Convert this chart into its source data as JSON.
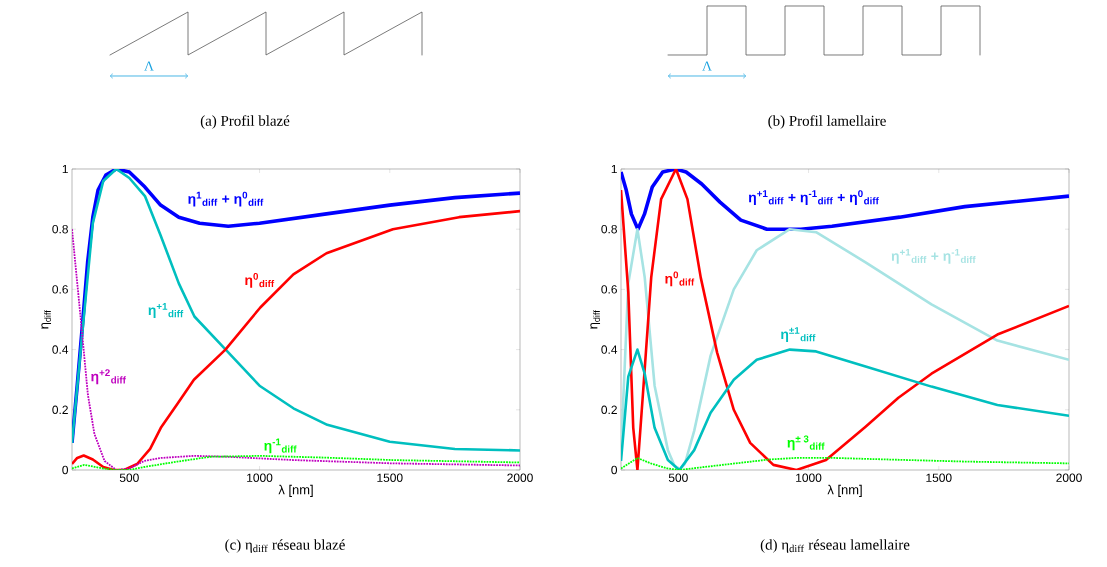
{
  "chart_data": [
    {
      "type": "other",
      "annotations": [
        "Λ",
        "(a) Profil blazé"
      ]
    },
    {
      "type": "other",
      "annotations": [
        "Λ",
        "(b) Profil lamellaire"
      ]
    },
    {
      "type": "line",
      "xlabel": "λ [nm]",
      "ylabel": "η$_{diff}$",
      "xlim": [
        280,
        2000
      ],
      "ylim": [
        0,
        1
      ],
      "xticks": [
        500,
        1000,
        1500,
        2000
      ],
      "yticks": [
        0,
        0.2,
        0.4,
        0.6,
        0.8,
        1
      ],
      "annotations": [
        "(c) η$_{diff}$ réseau blazé"
      ],
      "series": [
        {
          "name": "η$^{1}$$_{diff}$ + η$^{0}$$_{diff}$",
          "color": "#0000ff",
          "x": [
            280,
            300,
            320,
            340,
            360,
            380,
            410,
            450,
            500,
            560,
            620,
            690,
            770,
            880,
            1000,
            1250,
            1500,
            1750,
            2000
          ],
          "values": [
            0.09,
            0.28,
            0.48,
            0.69,
            0.84,
            0.93,
            0.98,
            1.0,
            0.99,
            0.94,
            0.88,
            0.84,
            0.82,
            0.81,
            0.82,
            0.85,
            0.88,
            0.905,
            0.92
          ]
        },
        {
          "name": "η$^{+1}$$_{diff}$",
          "color": "#00bfbf",
          "x": [
            280,
            320,
            360,
            400,
            450,
            500,
            560,
            620,
            690,
            750,
            870,
            1000,
            1130,
            1260,
            1500,
            1750,
            2000
          ],
          "values": [
            0.09,
            0.46,
            0.82,
            0.96,
            1.0,
            0.97,
            0.91,
            0.78,
            0.62,
            0.51,
            0.4,
            0.28,
            0.205,
            0.15,
            0.094,
            0.07,
            0.065
          ]
        },
        {
          "name": "η$^{0}$$_{diff}$",
          "color": "#ff0000",
          "x": [
            280,
            300,
            325,
            360,
            400,
            440,
            480,
            530,
            580,
            621,
            685,
            748,
            869,
            1003,
            1130,
            1257,
            1512,
            1766,
            2000
          ],
          "values": [
            0.02,
            0.04,
            0.048,
            0.035,
            0.01,
            0,
            0,
            0.02,
            0.07,
            0.14,
            0.22,
            0.3,
            0.4,
            0.54,
            0.65,
            0.72,
            0.8,
            0.84,
            0.86
          ]
        },
        {
          "name": "η$^{+2}$$_{diff}$",
          "color": "#bf00bf",
          "line_style": "dotted",
          "x": [
            280,
            316,
            341,
            366,
            405,
            450,
            500,
            557,
            621,
            748,
            875,
            1130,
            1512,
            2000
          ],
          "values": [
            0.8,
            0.48,
            0.25,
            0.12,
            0.03,
            0,
            0.005,
            0.03,
            0.04,
            0.047,
            0.044,
            0.033,
            0.022,
            0.015
          ]
        },
        {
          "name": "η$^{-1}$$_{diff}$",
          "color": "#00ff00",
          "line_style": "dotted",
          "x": [
            280,
            327,
            400,
            450,
            500,
            557,
            685,
            812,
            1003,
            1257,
            1512,
            2000
          ],
          "values": [
            0.005,
            0.017,
            0.005,
            0,
            0,
            0.01,
            0.028,
            0.044,
            0.047,
            0.041,
            0.033,
            0.025
          ]
        }
      ]
    },
    {
      "type": "line",
      "xlabel": "λ [nm]",
      "ylabel": "η$_{diff}$",
      "xlim": [
        280,
        2000
      ],
      "ylim": [
        0,
        1
      ],
      "xticks": [
        500,
        1000,
        1500,
        2000
      ],
      "yticks": [
        0,
        0.2,
        0.4,
        0.6,
        0.8,
        1
      ],
      "annotations": [
        "(d) η$_{diff}$ réseau lamellaire"
      ],
      "series": [
        {
          "name": "η$^{+1}$$_{diff}$ + η$^{-1}$$_{diff}$ + η$^{0}$$_{diff}$",
          "color": "#0000ff",
          "x": [
            280,
            300,
            320,
            345,
            370,
            400,
            440,
            490,
            530,
            590,
            660,
            740,
            840,
            970,
            1090,
            1350,
            1600,
            2000
          ],
          "values": [
            0.99,
            0.93,
            0.85,
            0.8,
            0.85,
            0.94,
            0.99,
            1.0,
            0.99,
            0.95,
            0.89,
            0.83,
            0.8,
            0.8,
            0.81,
            0.84,
            0.875,
            0.91
          ]
        },
        {
          "name": "η$^{+1}$$_{diff}$ + η$^{-1}$$_{diff}$",
          "color": "#a6e3e3",
          "x": [
            280,
            308,
            343,
            371,
            409,
            460,
            485,
            504,
            525,
            561,
            624,
            713,
            801,
            928,
            1029,
            1219,
            1472,
            1725,
            2000
          ],
          "values": [
            0.06,
            0.62,
            0.8,
            0.64,
            0.28,
            0.066,
            0.015,
            0,
            0.02,
            0.13,
            0.38,
            0.6,
            0.73,
            0.8,
            0.79,
            0.69,
            0.55,
            0.43,
            0.366
          ]
        },
        {
          "name": "η$^{0}$$_{diff}$",
          "color": "#ff0000",
          "x": [
            280,
            308,
            327,
            343,
            364,
            396,
            434,
            491,
            535,
            586,
            649,
            713,
            776,
            865,
            954,
            1067,
            1219,
            1345,
            1472,
            1725,
            2000
          ],
          "values": [
            0.93,
            0.59,
            0.14,
            0,
            0.25,
            0.64,
            0.9,
            1.0,
            0.9,
            0.64,
            0.39,
            0.2,
            0.09,
            0.017,
            0,
            0.033,
            0.144,
            0.24,
            0.32,
            0.45,
            0.545
          ]
        },
        {
          "name": "η$^{±1}$$_{diff}$",
          "color": "#00bfbf",
          "x": [
            280,
            308,
            343,
            371,
            409,
            460,
            504,
            561,
            624,
            713,
            801,
            928,
            1029,
            1219,
            1472,
            1725,
            2000
          ],
          "values": [
            0.03,
            0.31,
            0.4,
            0.32,
            0.14,
            0.033,
            0,
            0.066,
            0.19,
            0.3,
            0.366,
            0.4,
            0.394,
            0.344,
            0.277,
            0.216,
            0.18
          ]
        },
        {
          "name": "η$^{± 3}$$_{diff}$",
          "color": "#00ff00",
          "line_style": "dotted",
          "x": [
            280,
            343,
            400,
            460,
            504,
            600,
            700,
            850,
            950,
            1100,
            1300,
            1600,
            2000
          ],
          "values": [
            0.005,
            0.04,
            0.02,
            0.005,
            0,
            0.01,
            0.02,
            0.035,
            0.04,
            0.04,
            0.035,
            0.028,
            0.022
          ]
        }
      ]
    }
  ]
}
